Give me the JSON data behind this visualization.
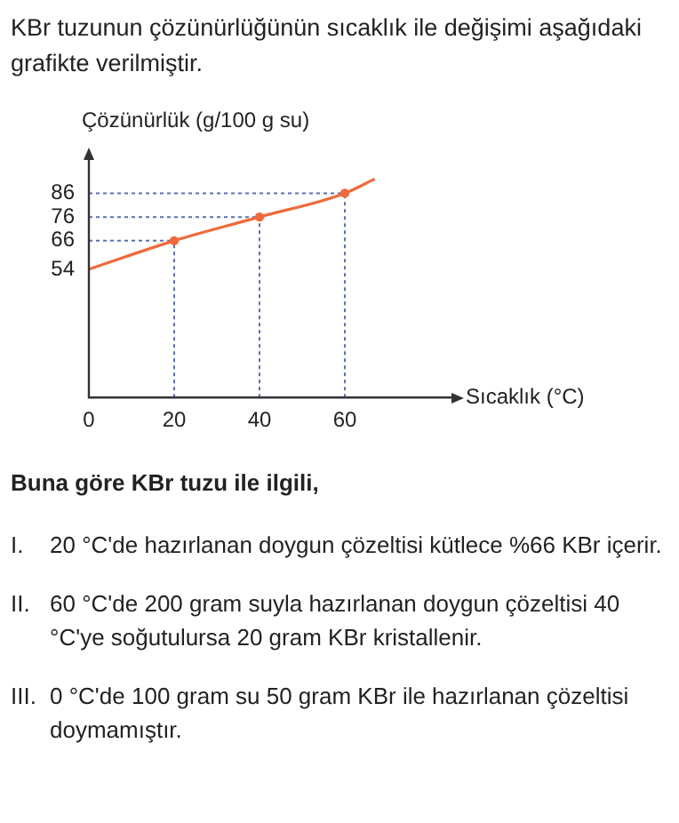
{
  "chart_data": {
    "type": "line",
    "title": "KBr tuzunun çözünürlüğünün sıcaklık ile değişimi aşağıdaki grafikte verilmiştir.",
    "xlabel": "Sıcaklık (°C)",
    "ylabel": "Çözünürlük (g/100 g su)",
    "xlim": [
      0,
      85
    ],
    "xticks": [
      0,
      20,
      40,
      60
    ],
    "ylim": [
      0,
      100
    ],
    "yticks": [
      54,
      66,
      76,
      86
    ],
    "series": [
      {
        "color": "#ef6a3c",
        "marker": "none",
        "x": [
          0,
          20,
          40,
          60,
          67
        ],
        "values": [
          54,
          66,
          76,
          86,
          92
        ]
      },
      {
        "type": "scatter",
        "color": "#ef6a3c",
        "marker": "circle",
        "x": [
          20,
          40,
          60
        ],
        "values": [
          66,
          76,
          86
        ]
      }
    ],
    "ref_lines": [
      {
        "axis": "y",
        "value": 66,
        "color": "#5b6fb5",
        "line_style": "dotted"
      },
      {
        "axis": "y",
        "value": 76,
        "color": "#5b6fb5",
        "line_style": "dotted"
      },
      {
        "axis": "y",
        "value": 86,
        "color": "#5b6fb5",
        "line_style": "dotted"
      },
      {
        "axis": "x",
        "value": 20,
        "color": "#5b6fb5",
        "line_style": "dotted"
      },
      {
        "axis": "x",
        "value": 40,
        "color": "#5b6fb5",
        "line_style": "dotted"
      },
      {
        "axis": "x",
        "value": 60,
        "color": "#5b6fb5",
        "line_style": "dotted"
      }
    ],
    "grid": false,
    "legend": false,
    "annotations": [
      "Buna göre KBr tuzu ile ilgili,",
      "I. 20 °C'de hazırlanan doygun çözeltisi kütlece %66 KBr içerir.",
      "II. 60 °C'de 200 gram suyla hazırlanan doygun çözeltisi 40 °C'ye soğutulursa 20 gram KBr kristallenir.",
      "III. 0 °C'de 100 gram su 50 gram KBr ile hazırlanan çözeltisi doymamıştır."
    ]
  }
}
